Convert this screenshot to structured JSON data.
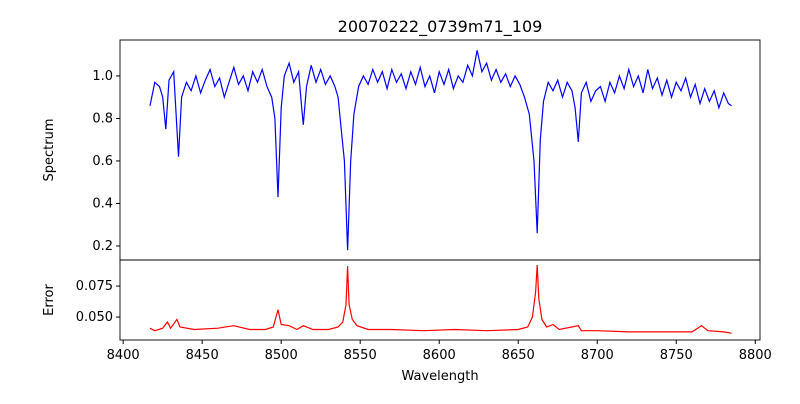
{
  "chart_data": [
    {
      "type": "line",
      "title": "20070222_0739m71_109",
      "ylabel": "Spectrum",
      "xlim": [
        8398,
        8803
      ],
      "ylim": [
        0.134,
        1.169
      ],
      "yticks": [
        0.2,
        0.4,
        0.6,
        0.8,
        1.0
      ],
      "ytick_labels": [
        "0.2",
        "0.4",
        "0.6",
        "0.8",
        "1.0"
      ],
      "color": "#0000ff",
      "points": [
        [
          8417,
          0.86
        ],
        [
          8420,
          0.97
        ],
        [
          8423,
          0.95
        ],
        [
          8425,
          0.9
        ],
        [
          8427,
          0.75
        ],
        [
          8429,
          0.98
        ],
        [
          8432,
          1.02
        ],
        [
          8435,
          0.62
        ],
        [
          8437,
          0.9
        ],
        [
          8440,
          0.97
        ],
        [
          8443,
          0.93
        ],
        [
          8446,
          1.0
        ],
        [
          8449,
          0.92
        ],
        [
          8452,
          0.98
        ],
        [
          8455,
          1.03
        ],
        [
          8458,
          0.95
        ],
        [
          8461,
          0.99
        ],
        [
          8464,
          0.9
        ],
        [
          8467,
          0.97
        ],
        [
          8470,
          1.04
        ],
        [
          8473,
          0.96
        ],
        [
          8476,
          1.0
        ],
        [
          8479,
          0.93
        ],
        [
          8482,
          1.02
        ],
        [
          8485,
          0.97
        ],
        [
          8488,
          1.03
        ],
        [
          8491,
          0.95
        ],
        [
          8494,
          0.9
        ],
        [
          8496,
          0.8
        ],
        [
          8498,
          0.43
        ],
        [
          8500,
          0.85
        ],
        [
          8502,
          1.0
        ],
        [
          8505,
          1.06
        ],
        [
          8508,
          0.97
        ],
        [
          8511,
          1.02
        ],
        [
          8513,
          0.85
        ],
        [
          8514,
          0.77
        ],
        [
          8516,
          0.95
        ],
        [
          8519,
          1.05
        ],
        [
          8522,
          0.97
        ],
        [
          8525,
          1.03
        ],
        [
          8528,
          0.96
        ],
        [
          8531,
          1.0
        ],
        [
          8534,
          0.95
        ],
        [
          8536,
          0.9
        ],
        [
          8538,
          0.75
        ],
        [
          8540,
          0.6
        ],
        [
          8542,
          0.18
        ],
        [
          8544,
          0.6
        ],
        [
          8546,
          0.82
        ],
        [
          8549,
          0.95
        ],
        [
          8552,
          1.0
        ],
        [
          8555,
          0.96
        ],
        [
          8558,
          1.03
        ],
        [
          8561,
          0.97
        ],
        [
          8564,
          1.02
        ],
        [
          8567,
          0.94
        ],
        [
          8570,
          1.03
        ],
        [
          8573,
          0.97
        ],
        [
          8576,
          1.01
        ],
        [
          8579,
          0.94
        ],
        [
          8582,
          1.02
        ],
        [
          8585,
          0.96
        ],
        [
          8588,
          1.04
        ],
        [
          8591,
          0.95
        ],
        [
          8594,
          1.0
        ],
        [
          8597,
          0.92
        ],
        [
          8600,
          1.02
        ],
        [
          8603,
          0.96
        ],
        [
          8606,
          1.03
        ],
        [
          8609,
          0.94
        ],
        [
          8612,
          1.0
        ],
        [
          8615,
          0.97
        ],
        [
          8618,
          1.05
        ],
        [
          8621,
          1.0
        ],
        [
          8624,
          1.12
        ],
        [
          8627,
          1.02
        ],
        [
          8630,
          1.06
        ],
        [
          8633,
          0.98
        ],
        [
          8636,
          1.03
        ],
        [
          8639,
          0.97
        ],
        [
          8642,
          1.01
        ],
        [
          8645,
          0.95
        ],
        [
          8648,
          1.0
        ],
        [
          8651,
          0.96
        ],
        [
          8654,
          0.9
        ],
        [
          8657,
          0.82
        ],
        [
          8660,
          0.6
        ],
        [
          8662,
          0.26
        ],
        [
          8664,
          0.7
        ],
        [
          8666,
          0.88
        ],
        [
          8669,
          0.97
        ],
        [
          8672,
          0.93
        ],
        [
          8675,
          0.98
        ],
        [
          8678,
          0.9
        ],
        [
          8681,
          0.97
        ],
        [
          8684,
          0.93
        ],
        [
          8686,
          0.85
        ],
        [
          8688,
          0.69
        ],
        [
          8690,
          0.92
        ],
        [
          8693,
          0.97
        ],
        [
          8696,
          0.88
        ],
        [
          8699,
          0.93
        ],
        [
          8702,
          0.95
        ],
        [
          8705,
          0.88
        ],
        [
          8708,
          0.97
        ],
        [
          8711,
          0.92
        ],
        [
          8714,
          1.0
        ],
        [
          8717,
          0.94
        ],
        [
          8720,
          1.03
        ],
        [
          8723,
          0.95
        ],
        [
          8726,
          1.0
        ],
        [
          8729,
          0.92
        ],
        [
          8732,
          1.03
        ],
        [
          8735,
          0.94
        ],
        [
          8738,
          0.99
        ],
        [
          8741,
          0.91
        ],
        [
          8744,
          0.98
        ],
        [
          8747,
          0.9
        ],
        [
          8750,
          0.97
        ],
        [
          8753,
          0.93
        ],
        [
          8756,
          0.99
        ],
        [
          8759,
          0.9
        ],
        [
          8762,
          0.96
        ],
        [
          8765,
          0.87
        ],
        [
          8768,
          0.94
        ],
        [
          8771,
          0.88
        ],
        [
          8774,
          0.93
        ],
        [
          8777,
          0.85
        ],
        [
          8780,
          0.92
        ],
        [
          8783,
          0.87
        ],
        [
          8785,
          0.86
        ]
      ]
    },
    {
      "type": "line",
      "xlabel": "Wavelength",
      "ylabel": "Error",
      "xlim": [
        8398,
        8803
      ],
      "ylim": [
        0.0315,
        0.096
      ],
      "xticks": [
        8400,
        8450,
        8500,
        8550,
        8600,
        8650,
        8700,
        8750,
        8800
      ],
      "xtick_labels": [
        "8400",
        "8450",
        "8500",
        "8550",
        "8600",
        "8650",
        "8700",
        "8750",
        "8800"
      ],
      "yticks": [
        0.05,
        0.075
      ],
      "ytick_labels": [
        "0.050",
        "0.075"
      ],
      "color": "#ff0000",
      "points": [
        [
          8417,
          0.041
        ],
        [
          8420,
          0.039
        ],
        [
          8425,
          0.041
        ],
        [
          8428,
          0.046
        ],
        [
          8430,
          0.041
        ],
        [
          8434,
          0.048
        ],
        [
          8436,
          0.042
        ],
        [
          8445,
          0.04
        ],
        [
          8460,
          0.041
        ],
        [
          8470,
          0.043
        ],
        [
          8480,
          0.04
        ],
        [
          8490,
          0.04
        ],
        [
          8495,
          0.042
        ],
        [
          8498,
          0.056
        ],
        [
          8500,
          0.044
        ],
        [
          8505,
          0.043
        ],
        [
          8510,
          0.04
        ],
        [
          8514,
          0.043
        ],
        [
          8520,
          0.04
        ],
        [
          8530,
          0.04
        ],
        [
          8536,
          0.042
        ],
        [
          8539,
          0.046
        ],
        [
          8541,
          0.06
        ],
        [
          8542,
          0.091
        ],
        [
          8543,
          0.06
        ],
        [
          8545,
          0.048
        ],
        [
          8548,
          0.043
        ],
        [
          8555,
          0.04
        ],
        [
          8570,
          0.04
        ],
        [
          8590,
          0.039
        ],
        [
          8610,
          0.04
        ],
        [
          8630,
          0.039
        ],
        [
          8650,
          0.04
        ],
        [
          8656,
          0.042
        ],
        [
          8659,
          0.05
        ],
        [
          8661,
          0.07
        ],
        [
          8662,
          0.092
        ],
        [
          8663,
          0.065
        ],
        [
          8665,
          0.048
        ],
        [
          8668,
          0.042
        ],
        [
          8672,
          0.044
        ],
        [
          8676,
          0.04
        ],
        [
          8688,
          0.043
        ],
        [
          8690,
          0.039
        ],
        [
          8700,
          0.039
        ],
        [
          8720,
          0.038
        ],
        [
          8740,
          0.038
        ],
        [
          8760,
          0.038
        ],
        [
          8766,
          0.043
        ],
        [
          8770,
          0.039
        ],
        [
          8780,
          0.038
        ],
        [
          8785,
          0.037
        ]
      ]
    }
  ]
}
